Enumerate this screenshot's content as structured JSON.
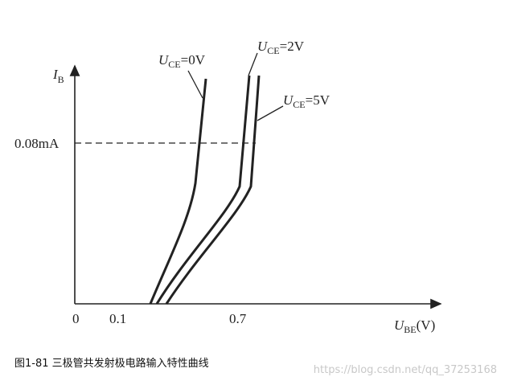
{
  "axes": {
    "y_label": {
      "symbol": "I",
      "subscript": "B"
    },
    "x_label": {
      "symbol": "U",
      "subscript": "BE",
      "unit": "(V)"
    },
    "y_marker": "0.08mA",
    "x_ticks": [
      "0",
      "0.1",
      "0.7"
    ]
  },
  "curves": [
    {
      "label": {
        "symbol": "U",
        "subscript": "CE",
        "value": "=0V"
      }
    },
    {
      "label": {
        "symbol": "U",
        "subscript": "CE",
        "value": "=2V"
      }
    },
    {
      "label": {
        "symbol": "U",
        "subscript": "CE",
        "value": "=5V"
      }
    }
  ],
  "caption": "图1-81 三极管共发射极电路输入特性曲线",
  "watermark": "https://blog.csdn.net/qq_37253168"
}
